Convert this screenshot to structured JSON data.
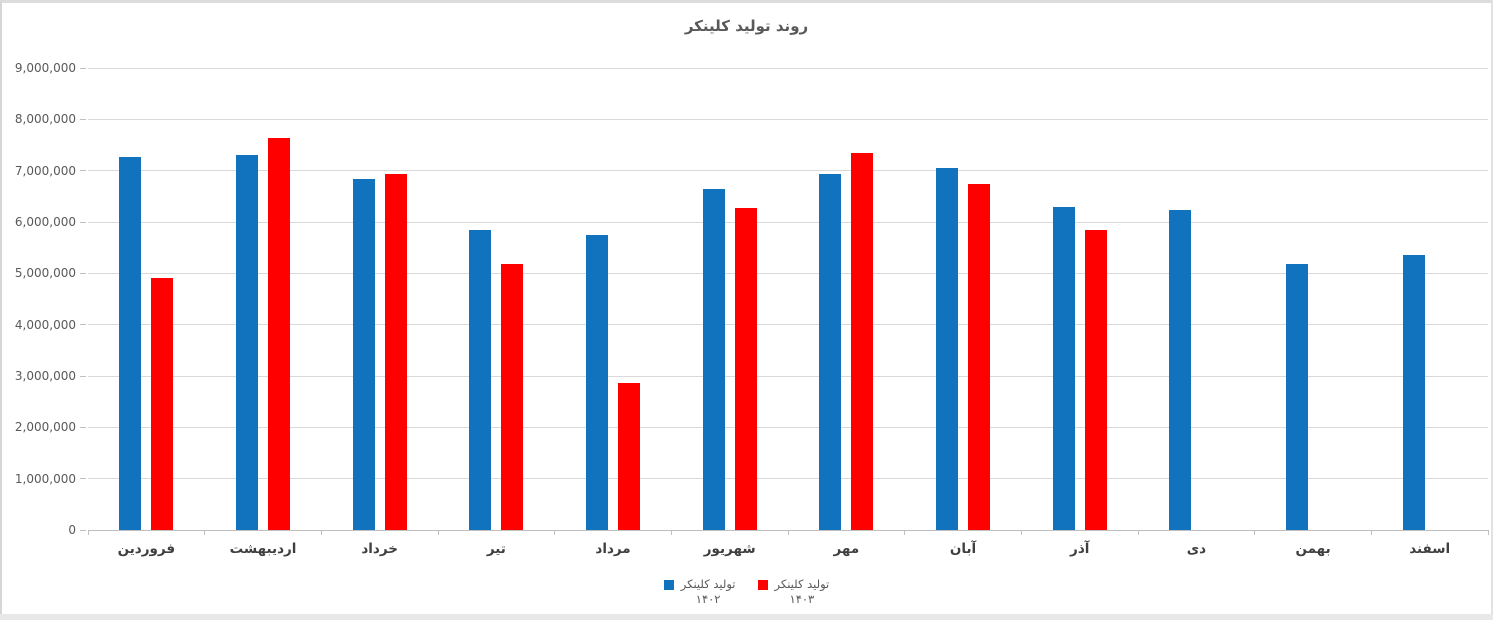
{
  "page": {
    "background": "#ffffff",
    "frame_border_color": "#dcdcdc",
    "bottom_strip_color": "#e8e8e8"
  },
  "chart_data": {
    "type": "bar",
    "title": "روند تولید کلینکر",
    "title_color": "#595959",
    "categories": [
      "فروردین",
      "اردیبهشت",
      "خرداد",
      "تیر",
      "مرداد",
      "شهریور",
      "مهر",
      "آبان",
      "آذر",
      "دی",
      "بهمن",
      "اسفند"
    ],
    "series": [
      {
        "name": "تولید کلینکر ۱۴۰۲",
        "label_line1": "تولید کلینکر",
        "label_line2": "۱۴۰۲",
        "color": "#1173bd",
        "values": [
          7270000,
          7310000,
          6830000,
          5840000,
          5740000,
          6640000,
          6940000,
          7060000,
          6290000,
          6230000,
          5190000,
          5350000
        ]
      },
      {
        "name": "تولید کلینکر ۱۴۰۳",
        "label_line1": "تولید کلینکر",
        "label_line2": "۱۴۰۳",
        "color": "#fe0000",
        "values": [
          4900000,
          7630000,
          6940000,
          5180000,
          2870000,
          6280000,
          7340000,
          6740000,
          5850000,
          null,
          null,
          null
        ]
      }
    ],
    "xlabel": "",
    "ylabel": "",
    "ylim": [
      0,
      9000000
    ],
    "ytick_step": 1000000,
    "ytick_labels": [
      "0",
      "1,000,000",
      "2,000,000",
      "3,000,000",
      "4,000,000",
      "5,000,000",
      "6,000,000",
      "7,000,000",
      "8,000,000",
      "9,000,000"
    ],
    "grid": true,
    "gridline_color": "#d9d9d9",
    "axis_line_color": "#bfbfbf",
    "tick_label_color": "#595959",
    "category_label_color": "#3f3f3f",
    "legend_position": "bottom-center"
  }
}
